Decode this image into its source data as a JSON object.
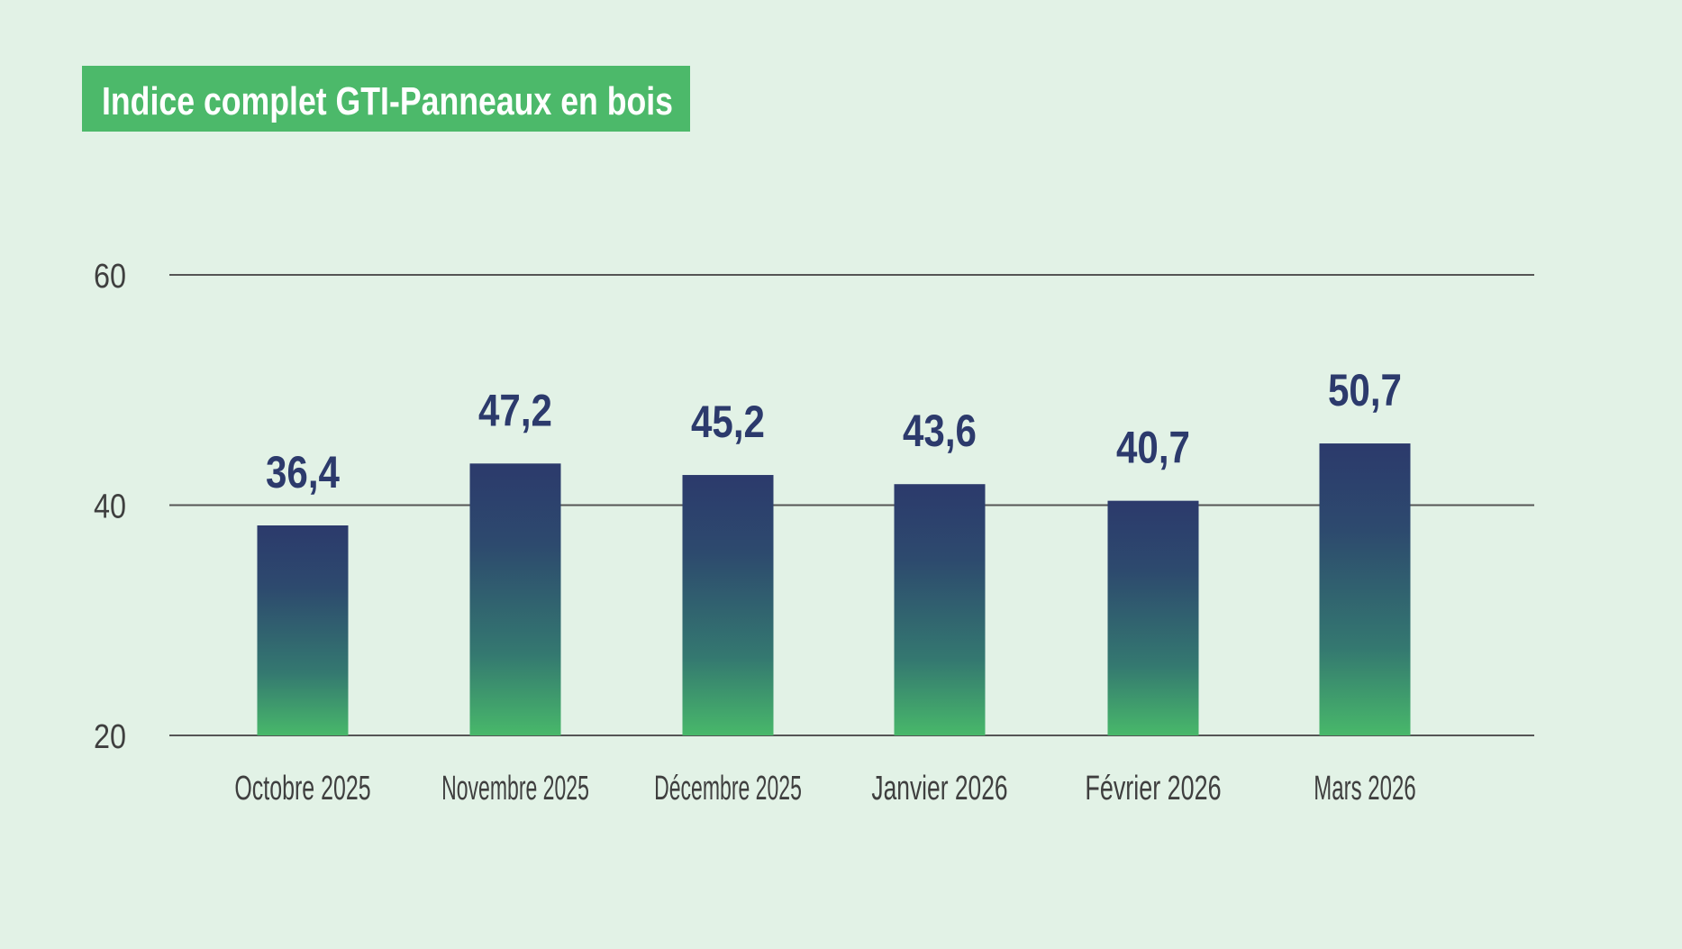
{
  "chart_data": {
    "type": "bar",
    "title": "Indice complet GTI-Panneaux en bois",
    "categories": [
      "Octobre 2025",
      "Novembre 2025",
      "Décembre 2025",
      "Janvier 2026",
      "Février 2026",
      "Mars 2026"
    ],
    "values": [
      36.4,
      47.2,
      45.2,
      43.6,
      40.7,
      50.7
    ],
    "value_labels": [
      "36,4",
      "47,2",
      "45,2",
      "43,6",
      "40,7",
      "50,7"
    ],
    "yticks": [
      20,
      40,
      60
    ],
    "ytick_labels": [
      "20",
      "40",
      "60"
    ],
    "ylim": [
      20,
      60
    ],
    "grid": true,
    "colors": {
      "background": "#e2f2e6",
      "title_box": "#4cb96a",
      "bar_top": "#2c3a6c",
      "bar_bottom": "#48b86a",
      "value_text": "#2c3a6c"
    }
  }
}
